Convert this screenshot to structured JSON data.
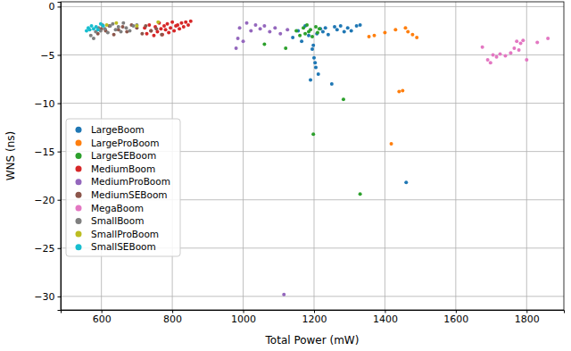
{
  "chart_data": {
    "type": "scatter",
    "x_label": "Total Power (mW)",
    "y_label": "WNS (ns)",
    "xlim": [
      485,
      1905
    ],
    "ylim": [
      -31.4,
      0.5
    ],
    "xticks": [
      600,
      800,
      1000,
      1200,
      1400,
      1600,
      1800
    ],
    "yticks": [
      {
        "value": 0,
        "label": "0"
      },
      {
        "value": -5,
        "label": "−5"
      },
      {
        "value": -10,
        "label": "−10"
      },
      {
        "value": -15,
        "label": "−15"
      },
      {
        "value": -20,
        "label": "−20"
      },
      {
        "value": -25,
        "label": "−25"
      },
      {
        "value": -30,
        "label": "−30"
      }
    ],
    "grid": true,
    "legend": "lower left",
    "marker": "circle",
    "series": [
      {
        "name": "LargeBoom",
        "color": "#1f77b4",
        "x": [
          1140,
          1155,
          1165,
          1175,
          1185,
          1190,
          1195,
          1198,
          1200,
          1203,
          1205,
          1208,
          1212,
          1218,
          1225,
          1232,
          1240,
          1250,
          1258,
          1265,
          1275,
          1285,
          1295,
          1305,
          1320,
          1330,
          1460
        ],
        "values": [
          -3.2,
          -2.5,
          -3.6,
          -2.0,
          -3.0,
          -7.6,
          -4.4,
          -4.0,
          -5.3,
          -5.8,
          -6.3,
          -2.8,
          -7.0,
          -2.3,
          -2.6,
          -2.2,
          -2.9,
          -8.0,
          -2.1,
          -2.4,
          -2.0,
          -2.6,
          -2.2,
          -2.5,
          -2.0,
          -1.9,
          -18.2
        ]
      },
      {
        "name": "LargeProBoom",
        "color": "#ff7f0e",
        "x": [
          1355,
          1370,
          1400,
          1418,
          1430,
          1440,
          1450,
          1458,
          1465,
          1478,
          1490
        ],
        "values": [
          -3.1,
          -3.0,
          -2.7,
          -14.2,
          -2.4,
          -8.8,
          -8.7,
          -2.2,
          -2.6,
          -2.9,
          -3.2
        ]
      },
      {
        "name": "LargeSEBoom",
        "color": "#2ca02c",
        "x": [
          1060,
          1120,
          1150,
          1160,
          1170,
          1175,
          1180,
          1185,
          1190,
          1195,
          1198,
          1205,
          1210,
          1215,
          1283,
          1330
        ],
        "values": [
          -3.9,
          -4.3,
          -2.5,
          -3.0,
          -2.2,
          -2.8,
          -1.9,
          -2.6,
          -2.4,
          -3.1,
          -13.2,
          -2.1,
          -2.7,
          -2.3,
          -9.6,
          -19.4
        ]
      },
      {
        "name": "MediumBoom",
        "color": "#d62728",
        "x": [
          722,
          728,
          735,
          740,
          748,
          752,
          758,
          763,
          768,
          772,
          777,
          781,
          786,
          790,
          795,
          800,
          805,
          810,
          815,
          820,
          826,
          832,
          838,
          845,
          852
        ],
        "values": [
          -2.2,
          -2.8,
          -1.9,
          -2.5,
          -3.0,
          -2.1,
          -2.6,
          -1.7,
          -2.3,
          -2.9,
          -2.0,
          -2.4,
          -1.8,
          -2.7,
          -2.2,
          -1.6,
          -2.5,
          -2.0,
          -1.9,
          -2.3,
          -1.7,
          -2.1,
          -1.6,
          -1.9,
          -1.5
        ]
      },
      {
        "name": "MediumProBoom",
        "color": "#9467bd",
        "x": [
          980,
          985,
          990,
          1000,
          1010,
          1022,
          1035,
          1048,
          1060,
          1075,
          1090,
          1105,
          1115,
          1125
        ],
        "values": [
          -4.3,
          -3.3,
          -2.2,
          -3.6,
          -1.7,
          -2.5,
          -1.9,
          -2.3,
          -2.0,
          -2.6,
          -2.2,
          -2.8,
          -29.8,
          -2.4
        ]
      },
      {
        "name": "MediumSEBoom",
        "color": "#8c564b",
        "x": [
          590,
          600,
          612,
          622,
          635,
          648,
          660,
          672,
          685,
          700,
          715,
          725,
          740,
          755,
          770
        ],
        "values": [
          -2.8,
          -2.3,
          -2.5,
          -2.0,
          -2.9,
          -2.4,
          -2.1,
          -2.6,
          -1.9,
          -2.2,
          -2.8,
          -2.0,
          -2.5,
          -2.3,
          -2.9
        ]
      },
      {
        "name": "MegaBoom",
        "color": "#e377c2",
        "x": [
          1675,
          1690,
          1698,
          1705,
          1715,
          1725,
          1740,
          1755,
          1765,
          1772,
          1778,
          1783,
          1790,
          1800,
          1830,
          1860
        ],
        "values": [
          -4.2,
          -5.5,
          -5.8,
          -5.0,
          -5.2,
          -4.9,
          -5.1,
          -4.8,
          -4.3,
          -3.6,
          -4.5,
          -3.8,
          -3.5,
          -5.5,
          -3.7,
          -3.3
        ]
      },
      {
        "name": "SmallBoom",
        "color": "#7f7f7f",
        "x": [
          570,
          578,
          584,
          592,
          598,
          603,
          610,
          618,
          625,
          632,
          640,
          648,
          655,
          662,
          670,
          680,
          690,
          700
        ],
        "values": [
          -3.0,
          -3.3,
          -2.6,
          -2.2,
          -2.5,
          -1.9,
          -2.3,
          -2.7,
          -2.0,
          -1.8,
          -2.4,
          -2.1,
          -2.6,
          -1.7,
          -2.2,
          -2.5,
          -2.0,
          -1.9
        ]
      },
      {
        "name": "SmallProBoom",
        "color": "#bcbd22",
        "x": [
          615,
          642,
          700,
          760
        ],
        "values": [
          -1.9,
          -1.7,
          -2.0,
          -1.6
        ]
      },
      {
        "name": "SmallSEBoom",
        "color": "#17becf",
        "x": [
          558,
          563,
          567,
          572,
          578,
          585,
          590,
          598,
          605
        ],
        "values": [
          -2.5,
          -2.2,
          -2.4,
          -2.0,
          -2.3,
          -2.1,
          -2.4,
          -1.8,
          -2.0
        ]
      }
    ]
  }
}
